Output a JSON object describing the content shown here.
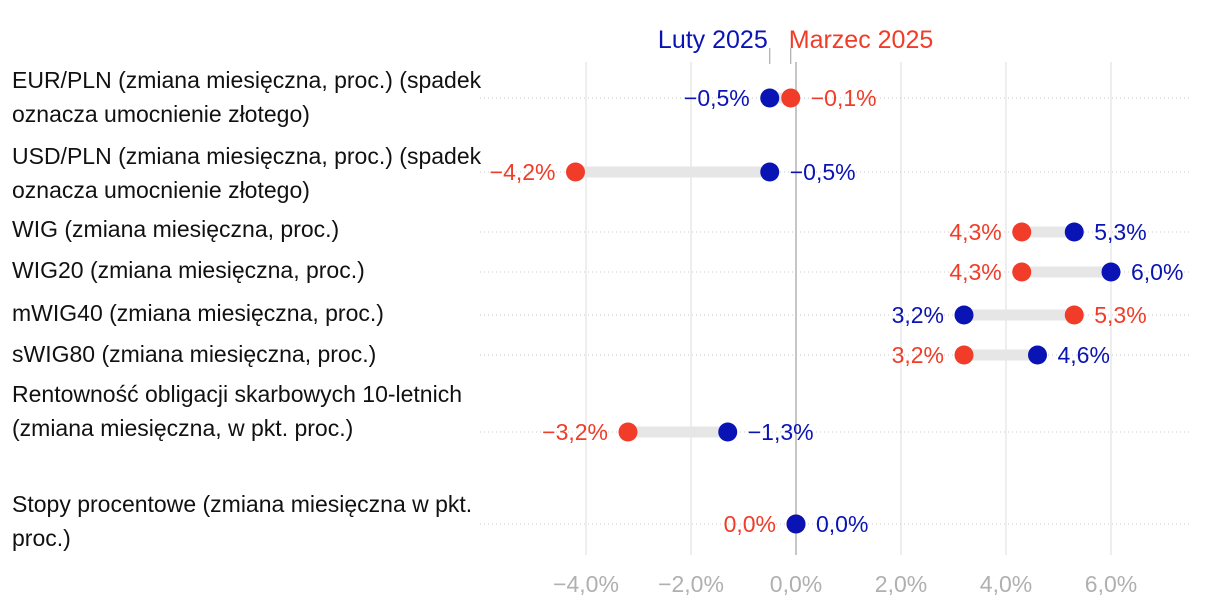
{
  "chart_data": {
    "type": "dumbbell",
    "series": [
      {
        "name": "Luty 2025",
        "color": "#0a14b4",
        "values": [
          -0.5,
          -0.5,
          5.3,
          6.0,
          3.2,
          4.6,
          -1.3,
          0.0
        ],
        "labels": [
          "−0,5%",
          "−0,5%",
          "5,3%",
          "6,0%",
          "3,2%",
          "4,6%",
          "−1,3%",
          "0,0%"
        ]
      },
      {
        "name": "Marzec 2025",
        "color": "#f03c28",
        "values": [
          -0.1,
          -4.2,
          4.3,
          4.3,
          5.3,
          3.2,
          -3.2,
          0.0
        ],
        "labels": [
          "−0,1%",
          "−4,2%",
          "4,3%",
          "4,3%",
          "5,3%",
          "3,2%",
          "−3,2%",
          "0,0%"
        ]
      }
    ],
    "categories": [
      "EUR/PLN (zmiana miesięczna, proc.) (spadek oznacza umocnienie złotego)",
      "USD/PLN (zmiana miesięczna, proc.) (spadek oznacza umocnienie złotego)",
      "WIG (zmiana miesięczna, proc.)",
      "WIG20 (zmiana miesięczna, proc.)",
      "mWIG40 (zmiana miesięczna, proc.)",
      "sWIG80 (zmiana miesięczna, proc.)",
      "Rentowność obligacji skarbowych 10-letnich (zmiana miesięczna, w pkt. proc.)",
      "Stopy procentowe (zmiana miesięczna w pkt. proc.)"
    ],
    "xlim": [
      -6.0,
      7.5
    ],
    "xticks": [
      -4,
      -2,
      0,
      2,
      4,
      6
    ],
    "xtick_labels": [
      "−4,0%",
      "−2,0%",
      "0,0%",
      "2,0%",
      "4,0%",
      "6,0%"
    ],
    "legend_position": "top",
    "grid": true,
    "colors": {
      "feb": "#0a14b4",
      "mar": "#f03c28",
      "connector": "#e6e6e6",
      "tick": "#b0b0b0",
      "grid": "#dcdcdc"
    }
  }
}
